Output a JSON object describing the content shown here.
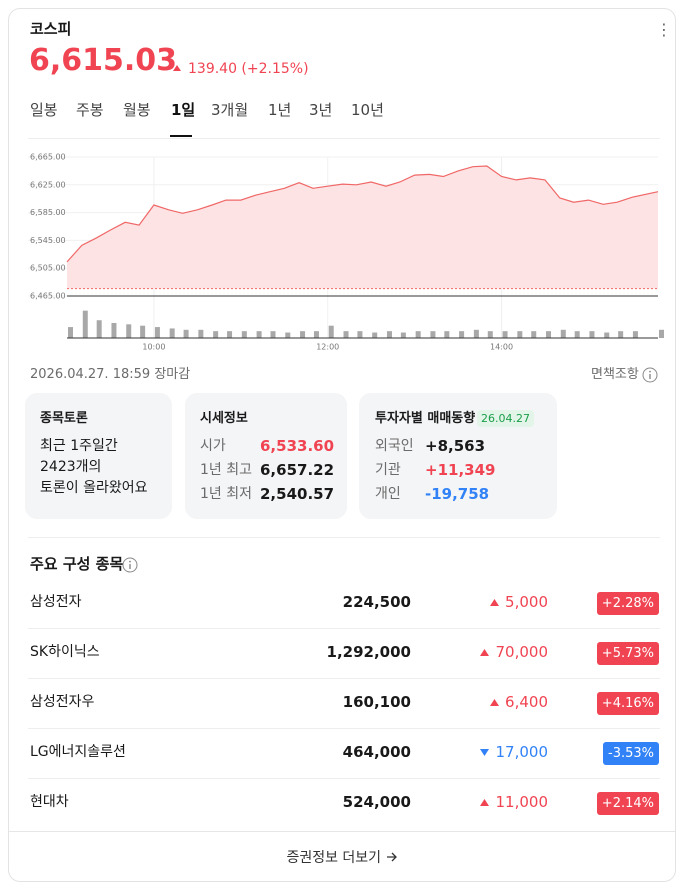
{
  "header": {
    "name": "코스피",
    "price": "6,615.03",
    "change": "139.40 (+2.15%)"
  },
  "tabs": [
    "일봉",
    "주봉",
    "월봉",
    "1일",
    "3개월",
    "1년",
    "3년",
    "10년"
  ],
  "active_tab": "1일",
  "chart_data": {
    "type": "line",
    "color": "#f06767",
    "area_color": "#fde3e3",
    "x": [
      9,
      9.17,
      9.33,
      9.5,
      9.67,
      9.83,
      10,
      10.17,
      10.33,
      10.5,
      10.67,
      10.83,
      11,
      11.17,
      11.33,
      11.5,
      11.67,
      11.83,
      12,
      12.17,
      12.33,
      12.5,
      12.67,
      12.83,
      13,
      13.17,
      13.33,
      13.5,
      13.67,
      13.83,
      14,
      14.17,
      14.33,
      14.5,
      14.67,
      14.83,
      15,
      15.17,
      15.33,
      15.5,
      15.8
    ],
    "values": [
      6514,
      6538,
      6548,
      6560,
      6571,
      6567,
      6596,
      6589,
      6584,
      6589,
      6596,
      6603,
      6603,
      6610,
      6615,
      6620,
      6628,
      6620,
      6623,
      6626,
      6625,
      6629,
      6623,
      6629,
      6639,
      6640,
      6637,
      6645,
      6651,
      6652,
      6637,
      6632,
      6635,
      6632,
      6606,
      6600,
      6603,
      6597,
      6600,
      6607,
      6615.03
    ],
    "xlim": [
      9,
      15.8
    ],
    "xticks": [
      {
        "value": 10,
        "label": "10:00"
      },
      {
        "value": 12,
        "label": "12:00"
      },
      {
        "value": 14,
        "label": "14:00"
      }
    ],
    "ylim": [
      6465,
      6665
    ],
    "yticks": [
      {
        "value": 6465,
        "label": "6,465.00"
      },
      {
        "value": 6505,
        "label": "6,505.00"
      },
      {
        "value": 6545,
        "label": "6,545.00"
      },
      {
        "value": 6585,
        "label": "6,585.00"
      },
      {
        "value": 6625,
        "label": "6,625.00"
      },
      {
        "value": 6665,
        "label": "6,665.00"
      }
    ],
    "grid": true,
    "reference_line": 6475.63,
    "volume": {
      "color": "#a8a8a8",
      "ylim": [
        0,
        30
      ],
      "values": [
        8,
        20,
        13,
        11,
        10,
        9,
        8,
        7,
        6,
        6,
        5,
        5,
        5,
        5,
        5,
        4,
        5,
        5,
        9,
        5,
        5,
        4,
        5,
        4,
        5,
        5,
        5,
        5,
        6,
        5,
        5,
        5,
        5,
        5,
        6,
        5,
        5,
        4,
        5,
        5,
        6
      ]
    }
  },
  "status": {
    "datetime": "2026.04.27. 18:59",
    "state": "장마감"
  },
  "disclaimer": "면책조항",
  "discussion": {
    "title": "종목토론",
    "lines": [
      "최근 1주일간",
      "2423개의",
      "토론이 올라왔어요"
    ]
  },
  "quote": {
    "title": "시세정보",
    "rows": [
      [
        "시가",
        "6,533.60"
      ],
      [
        "1년 최고",
        "6,657.22"
      ],
      [
        "1년 최저",
        "2,540.57"
      ]
    ]
  },
  "investors": {
    "title": "투자자별 매매동향",
    "date": "26.04.27",
    "rows": [
      [
        "외국인",
        "+8,563"
      ],
      [
        "기관",
        "+11,349"
      ],
      [
        "개인",
        "-19,758"
      ]
    ]
  },
  "constituents": {
    "title": "주요 구성 종목",
    "rows": [
      [
        "삼성전자",
        "224,500",
        "5,000",
        "+2.28%"
      ],
      [
        "SK하이닉스",
        "1,292,000",
        "70,000",
        "+5.73%"
      ],
      [
        "삼성전자우",
        "160,100",
        "6,400",
        "+4.16%"
      ],
      [
        "LG에너지솔루션",
        "464,000",
        "17,000",
        "-3.53%"
      ],
      [
        "현대차",
        "524,000",
        "11,000",
        "+2.14%"
      ]
    ]
  },
  "footer": "증권정보 더보기"
}
